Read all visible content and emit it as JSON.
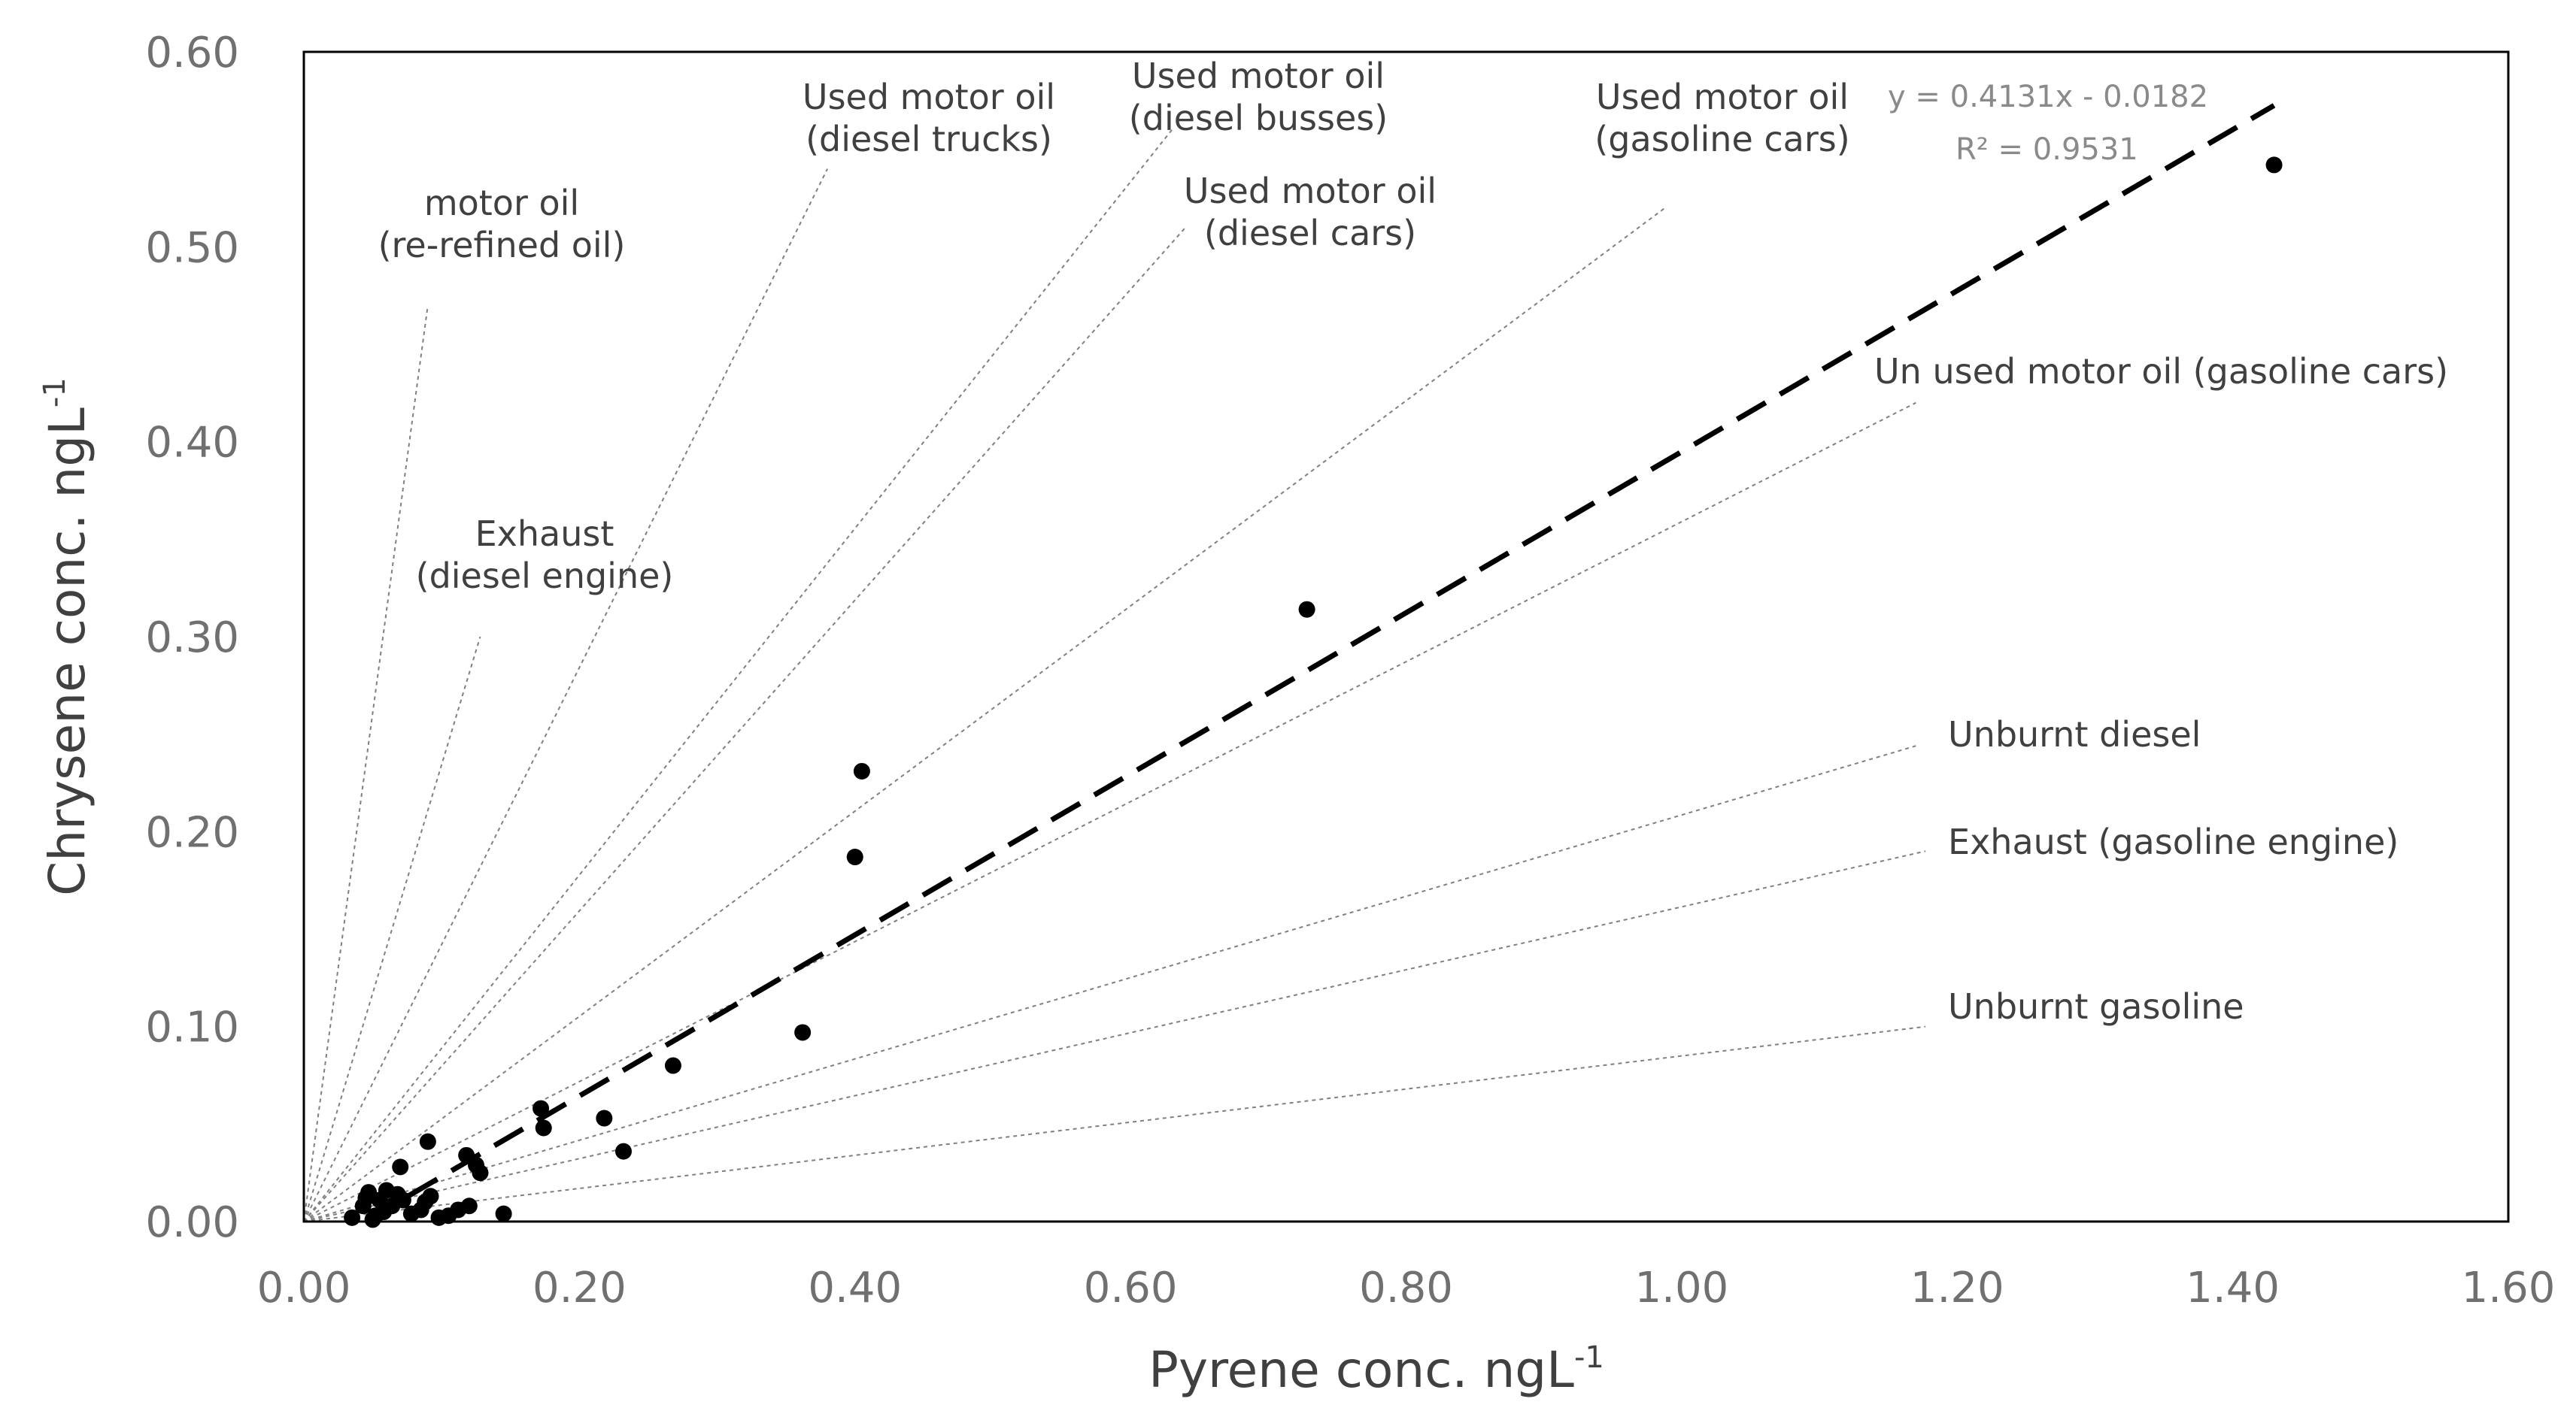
{
  "chart_data": {
    "type": "scatter",
    "title": "",
    "xlabel": "Pyrene conc. ngL",
    "xlabel_superscript": "-1",
    "ylabel": "Chrysene conc. ngL",
    "ylabel_superscript": "-1",
    "xlim": [
      0,
      1.6
    ],
    "ylim": [
      0,
      0.6
    ],
    "x_ticks": [
      "0.00",
      "0.20",
      "0.40",
      "0.60",
      "0.80",
      "1.00",
      "1.20",
      "1.40",
      "1.60"
    ],
    "y_ticks": [
      "0.00",
      "0.10",
      "0.20",
      "0.30",
      "0.40",
      "0.50",
      "0.60"
    ],
    "grid": false,
    "points": [
      {
        "x": 1.43,
        "y": 0.542
      },
      {
        "x": 0.728,
        "y": 0.314
      },
      {
        "x": 0.405,
        "y": 0.231
      },
      {
        "x": 0.4,
        "y": 0.187
      },
      {
        "x": 0.362,
        "y": 0.097
      },
      {
        "x": 0.268,
        "y": 0.08
      },
      {
        "x": 0.232,
        "y": 0.036
      },
      {
        "x": 0.218,
        "y": 0.053
      },
      {
        "x": 0.172,
        "y": 0.058
      },
      {
        "x": 0.174,
        "y": 0.048
      },
      {
        "x": 0.145,
        "y": 0.004
      },
      {
        "x": 0.128,
        "y": 0.025
      },
      {
        "x": 0.125,
        "y": 0.029
      },
      {
        "x": 0.118,
        "y": 0.034
      },
      {
        "x": 0.12,
        "y": 0.008
      },
      {
        "x": 0.112,
        "y": 0.006
      },
      {
        "x": 0.105,
        "y": 0.003
      },
      {
        "x": 0.098,
        "y": 0.002
      },
      {
        "x": 0.09,
        "y": 0.041
      },
      {
        "x": 0.092,
        "y": 0.013
      },
      {
        "x": 0.088,
        "y": 0.01
      },
      {
        "x": 0.085,
        "y": 0.006
      },
      {
        "x": 0.078,
        "y": 0.004
      },
      {
        "x": 0.07,
        "y": 0.028
      },
      {
        "x": 0.072,
        "y": 0.011
      },
      {
        "x": 0.068,
        "y": 0.014
      },
      {
        "x": 0.064,
        "y": 0.008
      },
      {
        "x": 0.06,
        "y": 0.016
      },
      {
        "x": 0.058,
        "y": 0.005
      },
      {
        "x": 0.055,
        "y": 0.011
      },
      {
        "x": 0.052,
        "y": 0.003
      },
      {
        "x": 0.05,
        "y": 0.001
      },
      {
        "x": 0.047,
        "y": 0.015
      },
      {
        "x": 0.045,
        "y": 0.012
      },
      {
        "x": 0.043,
        "y": 0.008
      },
      {
        "x": 0.035,
        "y": 0.002
      }
    ],
    "trendline": {
      "slope": 0.4131,
      "intercept": -0.0182,
      "x_range": [
        0.045,
        1.43
      ],
      "style": "dashed",
      "equation": "y = 0.4131x - 0.0182",
      "r_squared": "R² = 0.9531"
    },
    "reference_lines": [
      {
        "label_lines": [
          "motor oil",
          "(re-refined oil)"
        ],
        "x2": 0.09,
        "y2": 0.47
      },
      {
        "label_lines": [
          "Exhaust",
          "(diesel engine)"
        ],
        "x2": 0.128,
        "y2": 0.3
      },
      {
        "label_lines": [
          "Used motor oil",
          "(diesel trucks)"
        ],
        "x2": 0.38,
        "y2": 0.54
      },
      {
        "label_lines": [
          "Used motor oil",
          "(diesel busses)"
        ],
        "x2": 0.63,
        "y2": 0.56
      },
      {
        "label_lines": [
          "Used motor oil",
          "(diesel cars)"
        ],
        "x2": 0.64,
        "y2": 0.51
      },
      {
        "label_lines": [
          "Used motor oil",
          "(gasoline cars)"
        ],
        "x2": 0.988,
        "y2": 0.52
      },
      {
        "label_lines": [
          "Un used motor oil (gasoline cars)"
        ],
        "x2": 1.17,
        "y2": 0.42
      },
      {
        "label_lines": [
          "Unburnt diesel"
        ],
        "x2": 1.17,
        "y2": 0.244
      },
      {
        "label_lines": [
          "Exhaust (gasoline engine)"
        ],
        "x2": 1.177,
        "y2": 0.19
      },
      {
        "label_lines": [
          "Unburnt gasoline"
        ],
        "x2": 1.177,
        "y2": 0.1
      }
    ],
    "colors": {
      "points": "#000000",
      "trendline": "#000000",
      "reference_lines": "#808080",
      "frame": "#000000"
    }
  }
}
